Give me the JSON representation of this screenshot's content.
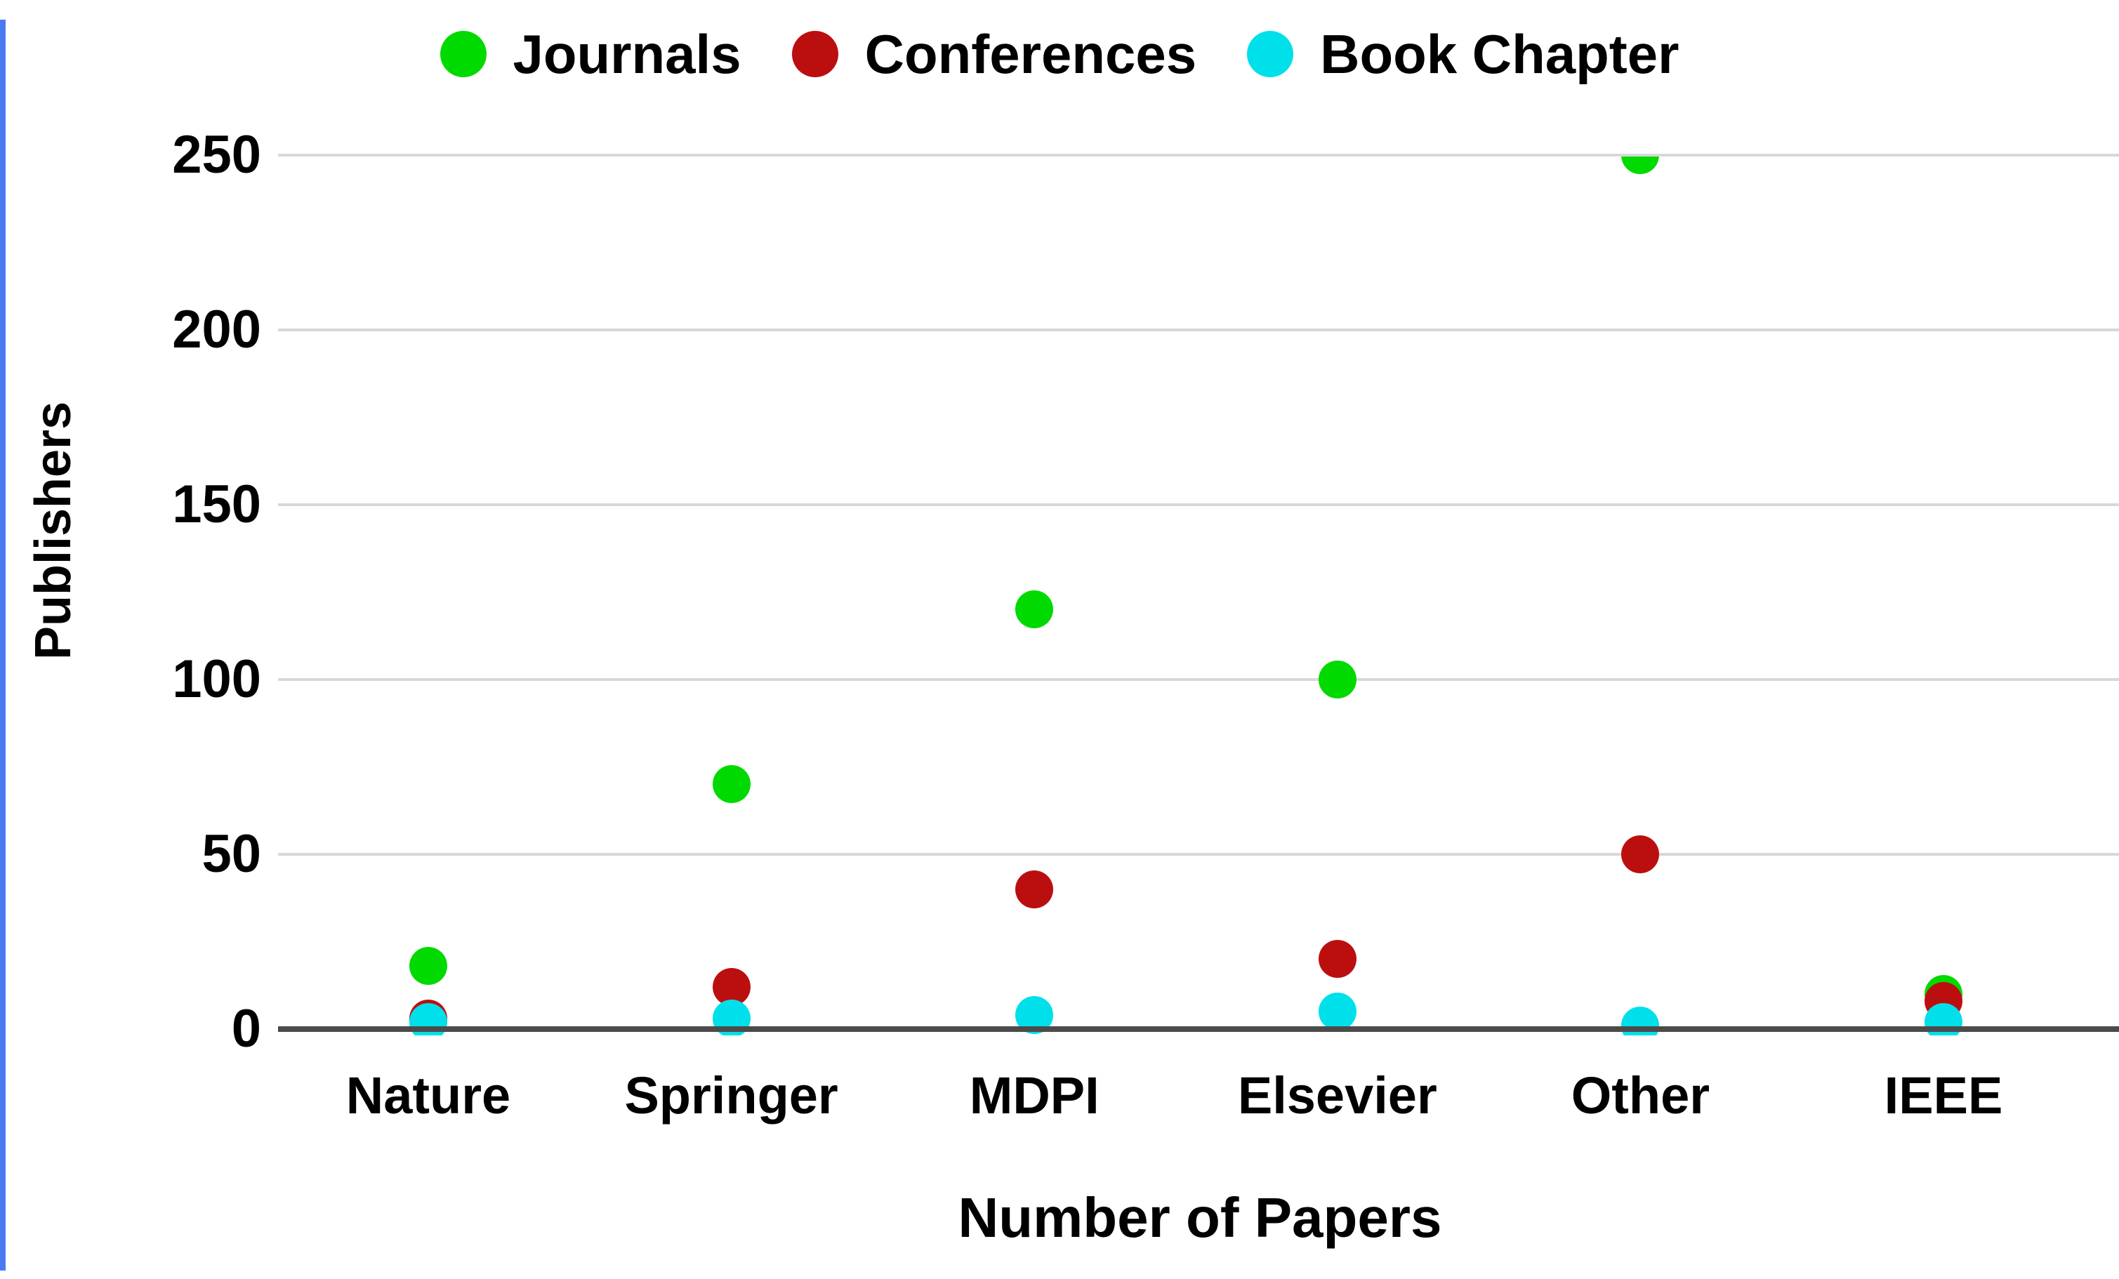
{
  "chart_data": {
    "type": "scatter",
    "title": "",
    "categories": [
      "Nature",
      "Springer",
      "MDPI",
      "Elsevier",
      "Other",
      "IEEE"
    ],
    "series": [
      {
        "name": "Journals",
        "color": "#00DA00",
        "values": [
          18,
          70,
          120,
          100,
          250,
          10
        ]
      },
      {
        "name": "Conferences",
        "color": "#BB0F0F",
        "values": [
          3,
          12,
          40,
          20,
          50,
          8
        ]
      },
      {
        "name": "Book Chapter",
        "color": "#00E0EA",
        "values": [
          2,
          3,
          4,
          5,
          1,
          2
        ]
      }
    ],
    "xlabel": "Number of Papers",
    "ylabel": "Publishers",
    "yticks": [
      0,
      50,
      100,
      150,
      200,
      250
    ],
    "ylim": [
      0,
      250
    ],
    "legend_position": "top",
    "grid": true
  },
  "colors": {
    "background": "#ffffff",
    "gridline": "#d8d8d8",
    "axis_line": "#4b4b4b",
    "text": "#000000",
    "left_edge_accent": "#4a79f2"
  }
}
